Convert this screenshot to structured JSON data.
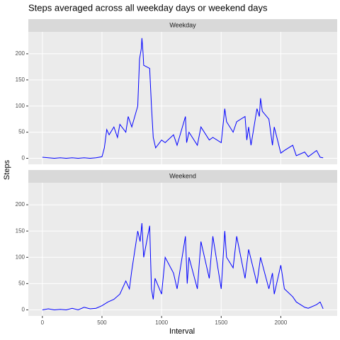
{
  "title": "Steps averaged across all weekday days or weekend days",
  "x_label": "Interval",
  "y_label": "Steps",
  "chart_data": [
    {
      "type": "line",
      "panel_title": "Weekday",
      "x": [
        0,
        50,
        100,
        150,
        200,
        250,
        300,
        350,
        400,
        450,
        500,
        520,
        540,
        560,
        600,
        630,
        650,
        700,
        720,
        750,
        800,
        815,
        830,
        835,
        845,
        850,
        900,
        915,
        930,
        945,
        950,
        1000,
        1030,
        1100,
        1130,
        1200,
        1210,
        1230,
        1300,
        1330,
        1400,
        1430,
        1500,
        1530,
        1545,
        1600,
        1630,
        1700,
        1715,
        1730,
        1750,
        1800,
        1820,
        1830,
        1845,
        1900,
        1930,
        1945,
        2000,
        2030,
        2100,
        2130,
        2200,
        2230,
        2300,
        2330,
        2355
      ],
      "series": [
        {
          "color": "#0000ff",
          "values": [
            2,
            1,
            0,
            1,
            0,
            1,
            0,
            1,
            0,
            1,
            3,
            20,
            55,
            45,
            60,
            40,
            65,
            50,
            80,
            60,
            100,
            190,
            210,
            230,
            200,
            178,
            172,
            100,
            40,
            25,
            20,
            35,
            30,
            45,
            25,
            80,
            30,
            50,
            25,
            60,
            35,
            40,
            30,
            95,
            70,
            50,
            70,
            80,
            35,
            60,
            25,
            95,
            80,
            115,
            90,
            75,
            25,
            60,
            10,
            15,
            25,
            5,
            12,
            3,
            15,
            2,
            1
          ]
        }
      ],
      "xlim": [
        -117.75,
        2472.75
      ],
      "xticks": [
        0,
        500,
        1000,
        1500,
        2000
      ],
      "ylim": [
        -11.5,
        241.9
      ],
      "yticks": [
        0,
        50,
        100,
        150,
        200
      ],
      "grid": true
    },
    {
      "type": "line",
      "panel_title": "Weekend",
      "x": [
        0,
        50,
        100,
        150,
        200,
        250,
        300,
        350,
        400,
        450,
        500,
        550,
        600,
        650,
        700,
        730,
        750,
        800,
        820,
        835,
        845,
        850,
        900,
        915,
        930,
        945,
        1000,
        1030,
        1100,
        1130,
        1200,
        1215,
        1230,
        1300,
        1330,
        1400,
        1430,
        1500,
        1530,
        1545,
        1600,
        1630,
        1700,
        1730,
        1800,
        1830,
        1900,
        1930,
        1945,
        2000,
        2030,
        2100,
        2130,
        2200,
        2230,
        2300,
        2330,
        2355
      ],
      "series": [
        {
          "color": "#0000ff",
          "values": [
            0,
            2,
            0,
            1,
            0,
            3,
            0,
            5,
            2,
            3,
            8,
            15,
            20,
            30,
            55,
            40,
            75,
            150,
            130,
            165,
            120,
            100,
            160,
            40,
            20,
            60,
            30,
            100,
            70,
            40,
            140,
            50,
            100,
            40,
            130,
            60,
            140,
            40,
            150,
            100,
            80,
            140,
            60,
            115,
            50,
            100,
            40,
            70,
            30,
            85,
            40,
            25,
            15,
            5,
            3,
            10,
            15,
            2
          ]
        }
      ],
      "xlim": [
        -117.75,
        2472.75
      ],
      "xticks": [
        0,
        500,
        1000,
        1500,
        2000
      ],
      "ylim": [
        -11.5,
        241.9
      ],
      "yticks": [
        0,
        50,
        100,
        150,
        200
      ],
      "grid": true
    }
  ]
}
